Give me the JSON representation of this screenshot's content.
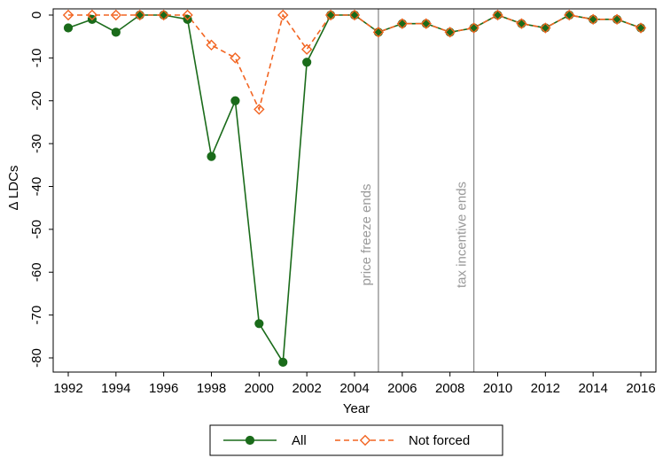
{
  "chart_data": {
    "type": "line",
    "title": "",
    "xlabel": "Year",
    "ylabel": "Δ LDCs",
    "x": [
      1992,
      1993,
      1994,
      1995,
      1996,
      1997,
      1998,
      1999,
      2000,
      2001,
      2002,
      2003,
      2004,
      2005,
      2006,
      2007,
      2008,
      2009,
      2010,
      2011,
      2012,
      2013,
      2014,
      2015,
      2016
    ],
    "xlim": [
      1992,
      2016
    ],
    "ylim": [
      -82,
      0
    ],
    "xticks": [
      "1992",
      "1994",
      "1996",
      "1998",
      "2000",
      "2002",
      "2004",
      "2006",
      "2008",
      "2010",
      "2012",
      "2014",
      "2016"
    ],
    "yticks": [
      "0",
      "-10",
      "-20",
      "-30",
      "-40",
      "-50",
      "-60",
      "-70",
      "-80"
    ],
    "grid": false,
    "legend_position": "bottom",
    "series": [
      {
        "name": "All",
        "color": "#1a6b1a",
        "style": "solid",
        "marker": "filled-circle",
        "values": [
          -3,
          -1,
          -4,
          0,
          0,
          -1,
          -33,
          -20,
          -72,
          -81,
          -11,
          0,
          0,
          -4,
          -2,
          -2,
          -4,
          -3,
          0,
          -2,
          -3,
          0,
          -1,
          -1,
          -3
        ]
      },
      {
        "name": "Not forced",
        "color": "#f26522",
        "style": "dashed",
        "marker": "hollow-diamond",
        "values": [
          0,
          0,
          0,
          0,
          0,
          0,
          -7,
          -10,
          -22,
          0,
          -8,
          0,
          0,
          -4,
          -2,
          -2,
          -4,
          -3,
          0,
          -2,
          -3,
          0,
          -1,
          -1,
          -3
        ]
      }
    ],
    "annotations": [
      {
        "text": "price freeze ends",
        "x": 2005
      },
      {
        "text": "tax incentive ends",
        "x": 2009
      }
    ]
  }
}
